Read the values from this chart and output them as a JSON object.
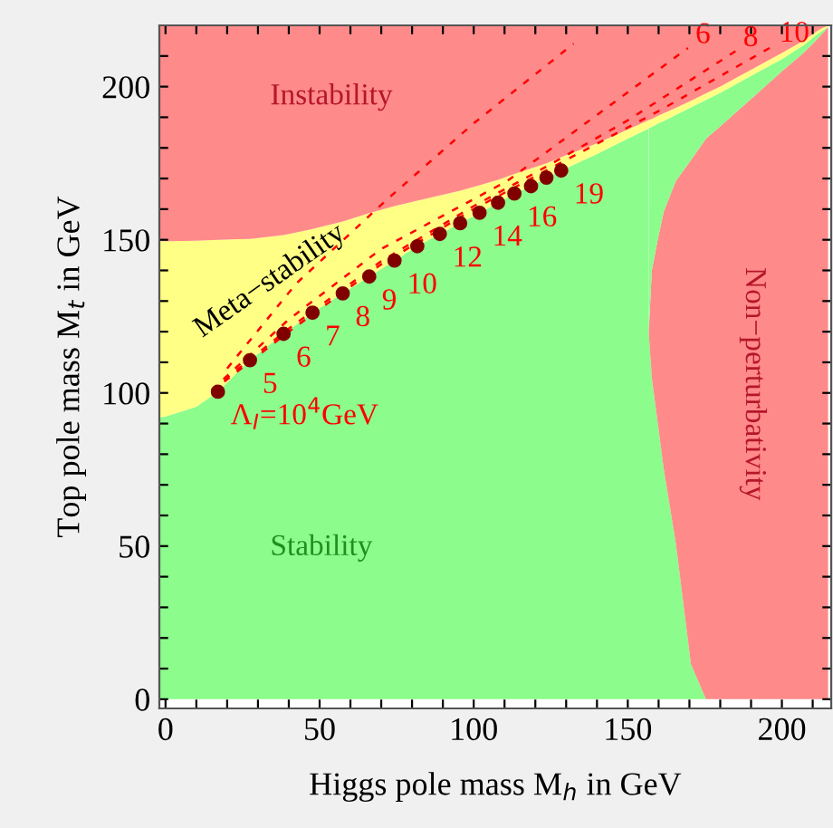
{
  "chart_data": {
    "type": "area",
    "stacked": true,
    "xlabel": "Higgs pole mass M$_{h}$ in GeV",
    "ylabel": "Top pole mass M$_{t}$ in GeV",
    "xlim": [
      -2,
      216
    ],
    "ylim": [
      -3,
      220
    ],
    "xticks": [
      0,
      {
        "value": 10,
        "label": null
      },
      {
        "value": 20,
        "label": null
      },
      {
        "value": 30,
        "label": null
      },
      {
        "value": 40,
        "label": null
      },
      50,
      {
        "value": 60,
        "label": null
      },
      {
        "value": 70,
        "label": null
      },
      {
        "value": 80,
        "label": null
      },
      {
        "value": 90,
        "label": null
      },
      100,
      {
        "value": 110,
        "label": null
      },
      {
        "value": 120,
        "label": null
      },
      {
        "value": 130,
        "label": null
      },
      {
        "value": 140,
        "label": null
      },
      150,
      {
        "value": 160,
        "label": null
      },
      {
        "value": 170,
        "label": null
      },
      {
        "value": 180,
        "label": null
      },
      {
        "value": 190,
        "label": null
      },
      200,
      {
        "value": 210,
        "label": null
      }
    ],
    "yticks": [
      0,
      {
        "value": 10,
        "label": null
      },
      {
        "value": 20,
        "label": null
      },
      {
        "value": 30,
        "label": null
      },
      {
        "value": 40,
        "label": null
      },
      50,
      {
        "value": 60,
        "label": null
      },
      {
        "value": 70,
        "label": null
      },
      {
        "value": 80,
        "label": null
      },
      {
        "value": 90,
        "label": null
      },
      100,
      {
        "value": 110,
        "label": null
      },
      {
        "value": 120,
        "label": null
      },
      {
        "value": 130,
        "label": null
      },
      {
        "value": 140,
        "label": null
      },
      150,
      {
        "value": 160,
        "label": null
      },
      {
        "value": 170,
        "label": null
      },
      {
        "value": 180,
        "label": null
      },
      {
        "value": 190,
        "label": null
      },
      200,
      {
        "value": 210,
        "label": null
      }
    ],
    "grid": false,
    "legend": false,
    "x": [
      -2,
      0,
      10,
      17,
      27.4,
      38.3,
      47.7,
      57.5,
      66.1,
      74.3,
      81.7,
      89,
      95.6,
      101.9,
      107.9,
      113.2,
      118.6,
      123.6,
      128.4,
      140,
      150,
      156.7,
      156.8,
      157.8,
      159.7,
      161.7,
      165.6,
      170.5,
      175.4,
      180,
      190,
      200,
      207,
      212,
      215
    ],
    "series": [
      {
        "color": "#8cfc8c",
        "values": [
          92,
          92.3,
          95.5,
          100.4,
          110.7,
          119.3,
          126.2,
          132.5,
          138,
          143.2,
          147.9,
          151.9,
          155.4,
          158.8,
          162.1,
          165.1,
          167.5,
          170.3,
          172.6,
          178,
          183,
          186.3,
          119.9,
          105,
          90.4,
          75,
          50.9,
          11.4,
          0,
          0,
          0,
          0,
          0,
          0,
          0
        ]
      },
      {
        "color": "#ff8a8a",
        "values": [
          null,
          null,
          null,
          null,
          null,
          null,
          null,
          null,
          null,
          null,
          null,
          null,
          null,
          null,
          null,
          null,
          null,
          null,
          null,
          null,
          null,
          null,
          0,
          35,
          59.6,
          84.3,
          118.3,
          164.6,
          183,
          187,
          196,
          205,
          211,
          216,
          219.5
        ]
      },
      {
        "color": "#8cfc8c",
        "values": [
          null,
          null,
          null,
          null,
          null,
          null,
          null,
          null,
          null,
          null,
          null,
          null,
          null,
          null,
          null,
          null,
          null,
          null,
          null,
          null,
          null,
          null,
          66.5,
          46.9,
          37.9,
          29.5,
          21.6,
          17.2,
          12.7,
          11,
          7.5,
          4,
          2.5,
          1.5,
          0
        ]
      },
      {
        "color": "#ffff85",
        "values": [
          57.5,
          57.2,
          54.2,
          49.6,
          39.6,
          32.2,
          27.3,
          23.5,
          20.7,
          17.8,
          14.9,
          12.6,
          10.6,
          9,
          7.5,
          6.4,
          5.8,
          4.7,
          4.4,
          3.5,
          3,
          2.7,
          2.7,
          2.6,
          2.5,
          2.5,
          2.3,
          2.2,
          2.1,
          2,
          2,
          2,
          1.5,
          1,
          0.5
        ]
      },
      {
        "color": "#ff8a8a",
        "values": [
          70.5,
          70.5,
          70.3,
          70,
          69.7,
          68.5,
          66.5,
          64,
          61.3,
          59,
          57.2,
          55.5,
          54,
          52.2,
          50.4,
          48.5,
          46.7,
          45,
          43,
          38.5,
          34,
          31,
          30.9,
          30.5,
          29.6,
          28.7,
          26.9,
          24.6,
          22.2,
          20,
          14.5,
          9,
          5,
          1.5,
          0
        ]
      },
      {
        "type": "line",
        "color": "#ff0000",
        "line_style": "dashed",
        "marker": "none",
        "x": [
          20,
          42.4,
          71.7,
          100,
          132.4
        ],
        "values": [
          108,
          135.7,
          163,
          188,
          214
        ]
      },
      {
        "type": "line",
        "color": "#ff0000",
        "line_style": "dashed",
        "marker": "none",
        "x": [
          15,
          40,
          70,
          110.9,
          140.2,
          169.5
        ],
        "values": [
          101,
          124,
          147,
          169.2,
          190.9,
          212.6
        ]
      },
      {
        "type": "line",
        "color": "#ff0000",
        "line_style": "dashed",
        "marker": "none",
        "x": [
          15,
          40,
          70,
          100,
          120.6,
          150,
          185
        ],
        "values": [
          101,
          121,
          143,
          161,
          172.2,
          189,
          211.6
        ]
      },
      {
        "type": "line",
        "color": "#ff0000",
        "line_style": "dashed",
        "marker": "none",
        "x": [
          15,
          40,
          70,
          100,
          128,
          160,
          196.7
        ],
        "values": [
          100.5,
          120,
          142,
          160,
          175,
          192,
          213
        ]
      },
      {
        "type": "scatter",
        "color": "#800000",
        "marker": "circle",
        "x": [
          17,
          27.4,
          38.3,
          47.7,
          57.5,
          66.1,
          74.3,
          81.7,
          89,
          95.6,
          101.9,
          107.9,
          113.2,
          118.6,
          123.6,
          128.4
        ],
        "values": [
          100.4,
          110.7,
          119.3,
          126.2,
          132.5,
          138,
          143.2,
          147.9,
          151.9,
          155.4,
          158.8,
          162.1,
          165.1,
          167.5,
          170.3,
          172.6
        ]
      }
    ],
    "annotations": [
      "Instability",
      "Meta−stability",
      "Stability",
      "Non−perturbativity",
      {
        "text": "6",
        "x": 169.5,
        "y": 212.6
      },
      {
        "text": "8",
        "x": 185,
        "y": 211.6
      },
      {
        "text": "10",
        "x": 196.7,
        "y": 213
      },
      {
        "text": "Λ$_{I}$=10$^{4}$GeV",
        "x": 17,
        "y": 100.4
      },
      {
        "text": "5",
        "x": 27.4,
        "y": 110.7
      },
      {
        "text": "6",
        "x": 38.3,
        "y": 119.3
      },
      {
        "text": "7",
        "x": 47.7,
        "y": 126.2
      },
      {
        "text": "8",
        "x": 57.5,
        "y": 132.5
      },
      {
        "text": "9",
        "x": 66.1,
        "y": 138
      },
      {
        "text": "10",
        "x": 74.3,
        "y": 143.2
      },
      {
        "text": "12",
        "x": 89,
        "y": 151.9
      },
      {
        "text": "14",
        "x": 101.9,
        "y": 158.8
      },
      {
        "text": "16",
        "x": 113.2,
        "y": 165.1
      },
      {
        "text": "19",
        "x": 128.4,
        "y": 172.6
      }
    ]
  }
}
